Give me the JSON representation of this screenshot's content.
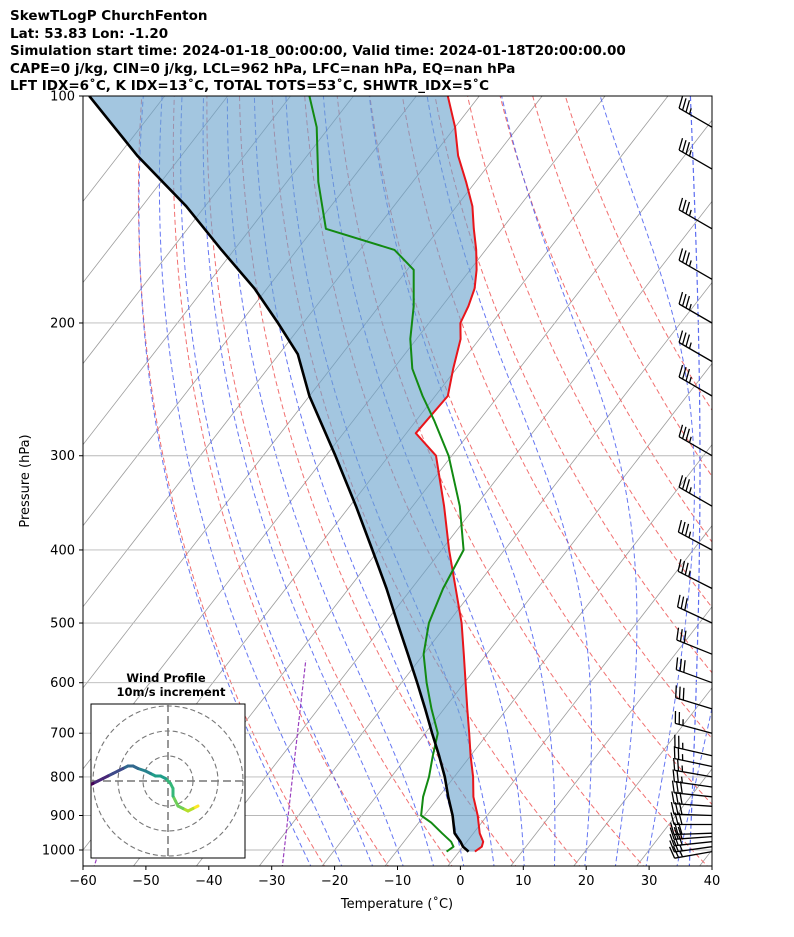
{
  "header": {
    "title": "SkewTLogP ChurchFenton",
    "location": "Lat: 53.83   Lon: -1.20",
    "times": "Simulation start time: 2024-01-18_00:00:00, Valid time: 2024-01-18T20:00:00.00",
    "indices1": "CAPE=0 j/kg, CIN=0 j/kg, LCL=962 hPa, LFC=nan hPa, EQ=nan hPa",
    "indices2": "LFT IDX=6˚C, K IDX=13˚C, TOTAL TOTS=53˚C, SHWTR_IDX=5˚C"
  },
  "colors": {
    "temperature": "#e8151b",
    "dewpoint": "#128a12",
    "parcel": "#000000",
    "cape_fill": "#6aa3cd",
    "dry_adiabat": "#f06060",
    "moist_adiabat": "#4a5ef0",
    "mixing_ratio": "#9a3fbf",
    "isotherm": "#9c9c9c",
    "wet_bulb_zero": "#5b6cf0"
  },
  "chart_data": {
    "type": "line",
    "title": "SkewTLogP ChurchFenton",
    "xlabel": "Temperature (˚C)",
    "ylabel": "Pressure (hPa)",
    "xlim": [
      -60,
      40
    ],
    "ylim": [
      1050,
      100
    ],
    "x_ticks": [
      -60,
      -50,
      -40,
      -30,
      -20,
      -10,
      0,
      10,
      20,
      30,
      40
    ],
    "x_tick_labels": [
      "−60",
      "−50",
      "−40",
      "−30",
      "−20",
      "−10",
      "0",
      "10",
      "20",
      "30",
      "40"
    ],
    "y_ticks": [
      1000,
      900,
      800,
      700,
      600,
      500,
      400,
      300,
      200,
      100
    ],
    "y_tick_labels": [
      "1000",
      "900",
      "800",
      "700",
      "600",
      "500",
      "400",
      "300",
      "200",
      "100"
    ],
    "skew_deg_per_log10p": 93,
    "series": [
      {
        "name": "Temperature",
        "points": [
          [
            2.5,
            1005
          ],
          [
            3,
            990
          ],
          [
            2.6,
            975
          ],
          [
            1,
            950
          ],
          [
            -1.5,
            900
          ],
          [
            -4.5,
            850
          ],
          [
            -7,
            800
          ],
          [
            -10,
            750
          ],
          [
            -13,
            700
          ],
          [
            -16.3,
            650
          ],
          [
            -19.8,
            600
          ],
          [
            -23.6,
            550
          ],
          [
            -27.8,
            500
          ],
          [
            -33,
            450
          ],
          [
            -38.8,
            400
          ],
          [
            -45,
            350
          ],
          [
            -52.5,
            300
          ],
          [
            -58.5,
            280
          ],
          [
            -58,
            250
          ],
          [
            -60.5,
            230
          ],
          [
            -63,
            210
          ],
          [
            -65,
            200
          ],
          [
            -65.8,
            190
          ],
          [
            -67,
            180
          ],
          [
            -69,
            170
          ],
          [
            -71.5,
            160
          ],
          [
            -74.5,
            150
          ],
          [
            -77.5,
            140
          ],
          [
            -81.5,
            130
          ],
          [
            -86,
            120
          ],
          [
            -90,
            110
          ],
          [
            -95,
            100
          ]
        ]
      },
      {
        "name": "Dewpoint",
        "points": [
          [
            -2,
            1005
          ],
          [
            -1.5,
            990
          ],
          [
            -2.5,
            975
          ],
          [
            -5,
            950
          ],
          [
            -8,
            920
          ],
          [
            -10.5,
            900
          ],
          [
            -12.5,
            850
          ],
          [
            -14,
            800
          ],
          [
            -16,
            750
          ],
          [
            -18,
            700
          ],
          [
            -22,
            650
          ],
          [
            -26,
            600
          ],
          [
            -30,
            550
          ],
          [
            -33,
            500
          ],
          [
            -35,
            450
          ],
          [
            -36.5,
            400
          ],
          [
            -42.5,
            350
          ],
          [
            -50.5,
            300
          ],
          [
            -57,
            270
          ],
          [
            -62,
            250
          ],
          [
            -67,
            230
          ],
          [
            -71,
            210
          ],
          [
            -74.5,
            190
          ],
          [
            -79,
            170
          ],
          [
            -84.5,
            160
          ],
          [
            -98,
            150
          ],
          [
            -105,
            130
          ],
          [
            -112,
            110
          ],
          [
            -117,
            100
          ]
        ]
      },
      {
        "name": "Parcel",
        "points": [
          [
            1.5,
            1005
          ],
          [
            0,
            990
          ],
          [
            -1,
            975
          ],
          [
            -3,
            950
          ],
          [
            -5.5,
            900
          ],
          [
            -8.5,
            850
          ],
          [
            -11.5,
            800
          ],
          [
            -15,
            750
          ],
          [
            -18.9,
            700
          ],
          [
            -23,
            650
          ],
          [
            -27.5,
            600
          ],
          [
            -32.5,
            550
          ],
          [
            -38,
            500
          ],
          [
            -44,
            450
          ],
          [
            -51,
            400
          ],
          [
            -59,
            350
          ],
          [
            -68.5,
            300
          ],
          [
            -80,
            250
          ],
          [
            -87,
            220
          ],
          [
            -94,
            200
          ],
          [
            -102,
            180
          ],
          [
            -112,
            160
          ],
          [
            -123,
            140
          ],
          [
            -137,
            120
          ],
          [
            -152,
            100
          ]
        ]
      }
    ],
    "fill_between": {
      "name": "CAPE/CIN area",
      "between": [
        "Parcel",
        "Temperature"
      ]
    },
    "background_lines": {
      "isotherms_C": [
        -140,
        -130,
        -120,
        -110,
        -100,
        -90,
        -80,
        -70,
        -60,
        -50,
        -40,
        -30,
        -20,
        -10,
        0,
        10,
        20,
        30,
        40
      ],
      "dry_adiabats_theta_K": [
        250,
        260,
        270,
        280,
        290,
        300,
        310,
        320,
        330,
        340,
        350,
        360,
        370,
        380
      ],
      "moist_adiabats_thetaw_C": [
        -25,
        -20,
        -15,
        -10,
        -5,
        0,
        5,
        10,
        15,
        20,
        25,
        30,
        35
      ],
      "mixing_ratio_lines": [
        "low",
        "high"
      ]
    },
    "wind_barbs": {
      "pressures_hPa": [
        1005,
        990,
        975,
        960,
        950,
        925,
        900,
        875,
        850,
        825,
        800,
        775,
        750,
        700,
        650,
        600,
        550,
        500,
        450,
        400,
        350,
        300,
        250,
        225,
        200,
        175,
        150,
        125,
        110
      ],
      "speed_kt": [
        25,
        27,
        28,
        30,
        30,
        30,
        30,
        28,
        28,
        26,
        25,
        25,
        25,
        27,
        28,
        30,
        30,
        30,
        33,
        34,
        35,
        35,
        35,
        35,
        35,
        35,
        35,
        35,
        35
      ],
      "dir_deg": [
        260,
        262,
        264,
        266,
        268,
        270,
        272,
        274,
        276,
        278,
        280,
        282,
        283,
        285,
        287,
        290,
        292,
        295,
        297,
        298,
        300,
        300,
        300,
        300,
        300,
        300,
        300,
        300,
        300
      ]
    },
    "hodograph": {
      "title": "Wind Profile",
      "subtitle": "10m/s increment",
      "rings_ms": [
        10,
        20,
        30
      ],
      "points_uv": [
        [
          12,
          -10
        ],
        [
          10,
          -11
        ],
        [
          8,
          -12
        ],
        [
          6,
          -11
        ],
        [
          4,
          -10
        ],
        [
          3,
          -8
        ],
        [
          2,
          -6
        ],
        [
          2,
          -3
        ],
        [
          1,
          -1
        ],
        [
          -1,
          1
        ],
        [
          -3,
          2
        ],
        [
          -5,
          2
        ],
        [
          -7,
          3
        ],
        [
          -9,
          4
        ],
        [
          -12,
          5
        ],
        [
          -14,
          6
        ],
        [
          -16,
          6
        ],
        [
          -18,
          5
        ],
        [
          -20,
          4
        ],
        [
          -22,
          3
        ],
        [
          -24,
          2
        ],
        [
          -26,
          1
        ],
        [
          -28,
          0
        ],
        [
          -30,
          -1
        ],
        [
          -32,
          -2
        ],
        [
          -34,
          -3
        ]
      ]
    }
  }
}
